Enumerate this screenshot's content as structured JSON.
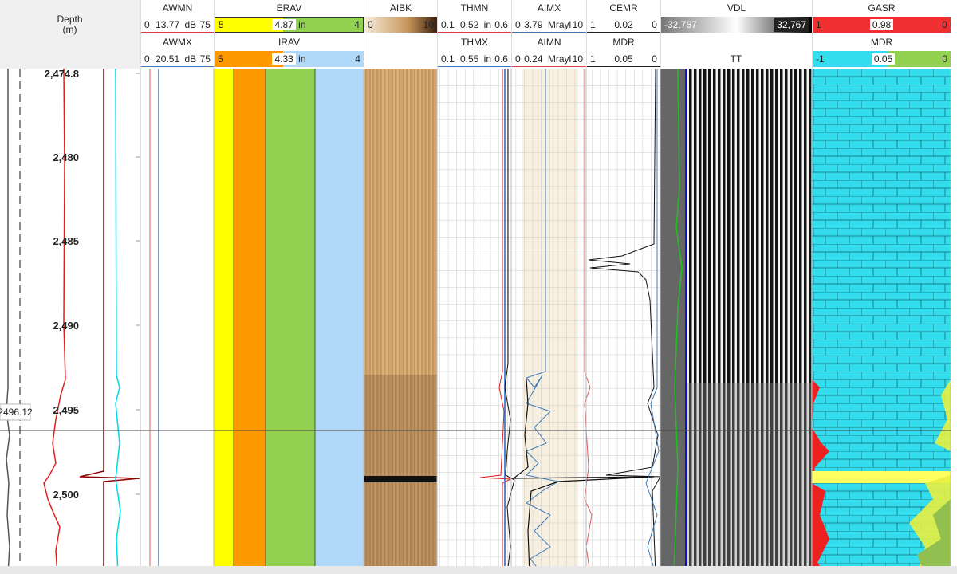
{
  "depth_track": {
    "title": "Depth",
    "unit": "(m)",
    "depth_labels": [
      "2,474.8",
      "2,480",
      "2,485",
      "2,490",
      "2,495",
      "2,500"
    ],
    "cursor_depth": "2496.12"
  },
  "tracks": [
    {
      "curves": [
        {
          "name": "AWMN",
          "left": "0",
          "value": "13.77",
          "unit": "dB",
          "right": "75"
        },
        {
          "name": "AWMX",
          "left": "0",
          "value": "20.51",
          "unit": "dB",
          "right": "75"
        }
      ]
    },
    {
      "curves": [
        {
          "name": "ERAV",
          "left": "5",
          "value": "4.87",
          "unit": "in",
          "right": "4"
        },
        {
          "name": "IRAV",
          "left": "5",
          "value": "4.33",
          "unit": "in",
          "right": "4"
        }
      ]
    },
    {
      "curves": [
        {
          "name": "AIBK",
          "left": "0",
          "right": "10"
        }
      ]
    },
    {
      "curves": [
        {
          "name": "THMN",
          "left": "0.1",
          "value": "0.52",
          "unit": "in",
          "right": "0.6"
        },
        {
          "name": "THMX",
          "left": "0.1",
          "value": "0.55",
          "unit": "in",
          "right": "0.6"
        }
      ]
    },
    {
      "curves": [
        {
          "name": "AIMX",
          "left": "0",
          "value": "3.79",
          "unit": "Mrayl",
          "right": "10"
        },
        {
          "name": "AIMN",
          "left": "0",
          "value": "0.24",
          "unit": "Mrayl",
          "right": "10"
        }
      ]
    },
    {
      "curves": [
        {
          "name": "CEMR",
          "left": "1",
          "value": "0.02",
          "right": "0"
        },
        {
          "name": "MDR",
          "left": "1",
          "value": "0.05",
          "right": "0"
        }
      ]
    },
    {
      "curves": [
        {
          "name": "VDL",
          "left": "-32,767",
          "right": "32,767"
        },
        {
          "name": "TT"
        }
      ]
    },
    {
      "curves": [
        {
          "name": "GASR",
          "left": "1",
          "value": "0.98",
          "right": "0"
        },
        {
          "name": "MDR",
          "left": "-1",
          "value": "0.05",
          "right": "0"
        }
      ]
    }
  ]
}
